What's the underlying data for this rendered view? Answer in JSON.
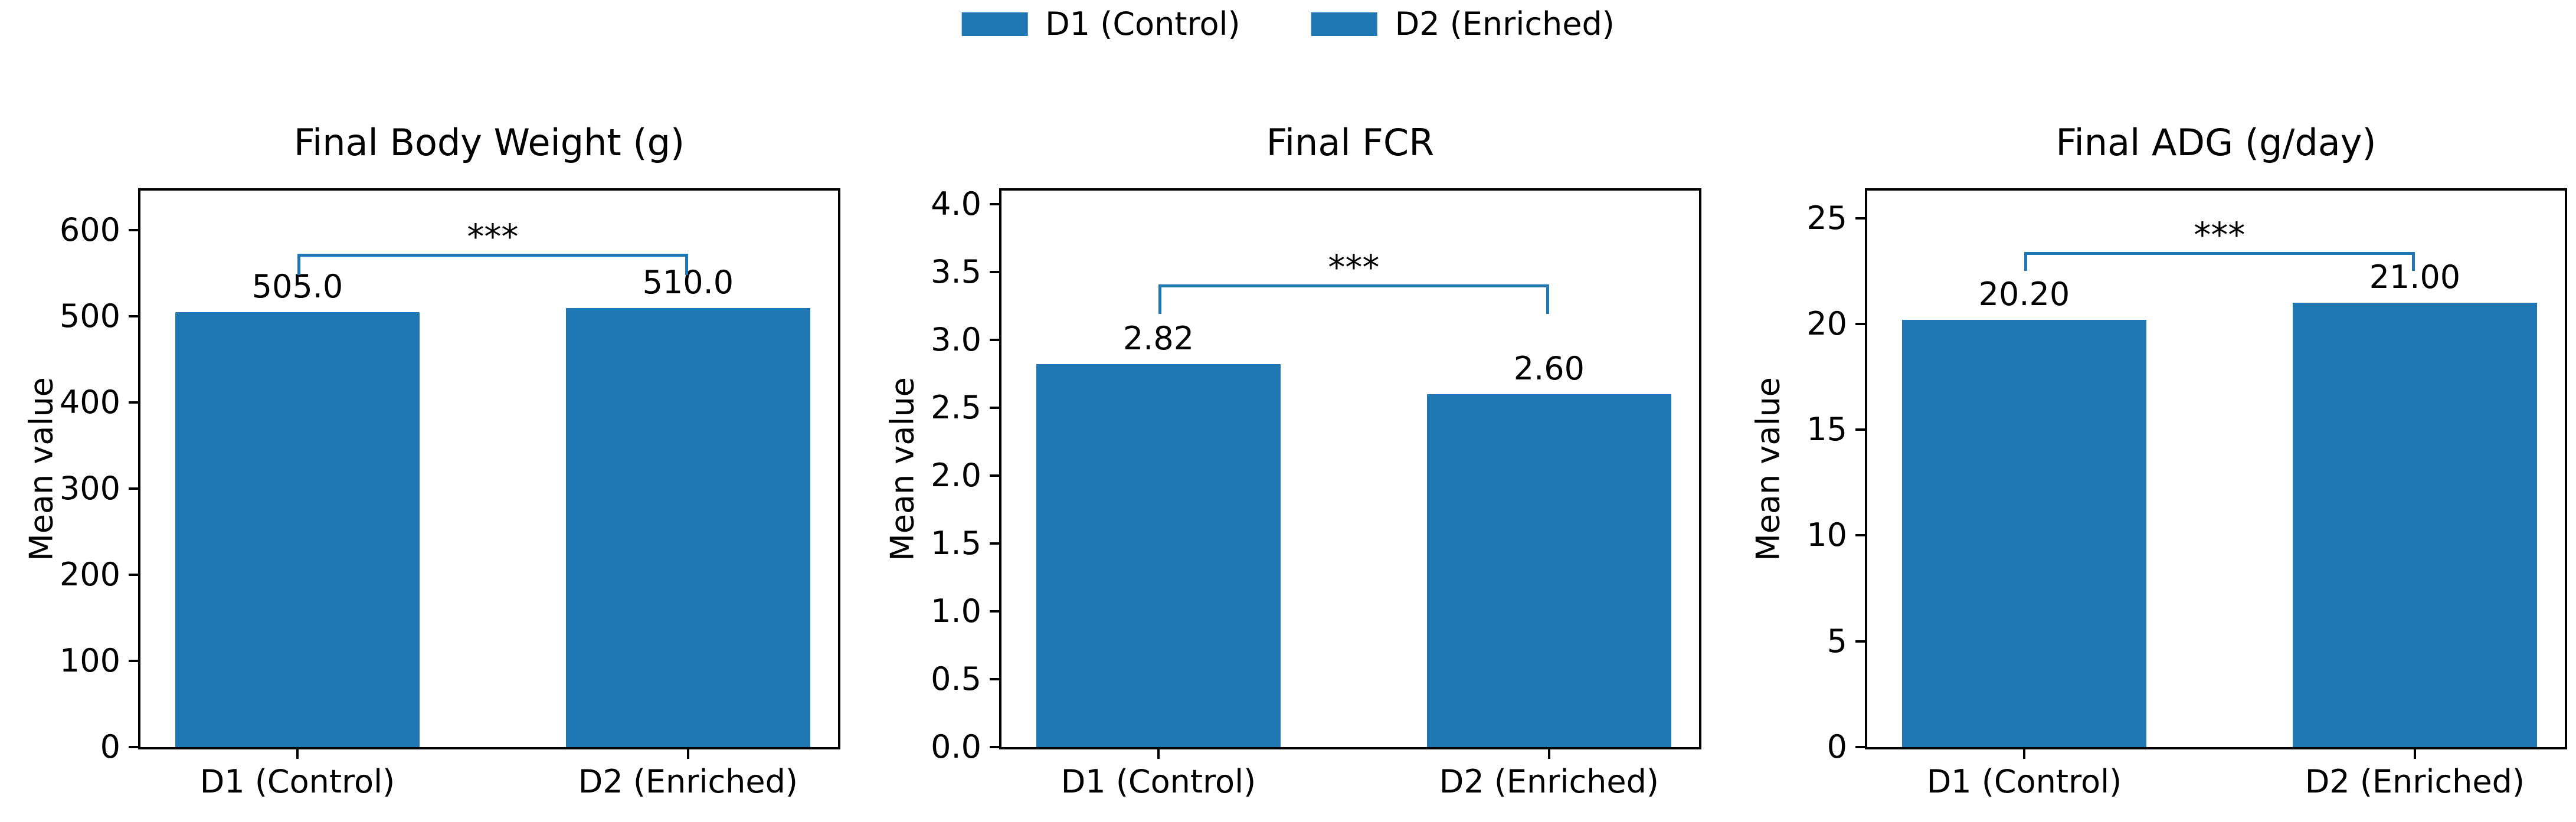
{
  "figure": {
    "background": "#ffffff",
    "accent_color": "#1f77b4",
    "text_color": "#000000"
  },
  "legend": {
    "position": "upper center",
    "items": [
      {
        "label": "D1 (Control)",
        "color": "#1f77b4"
      },
      {
        "label": "D2 (Enriched)",
        "color": "#1f77b4"
      }
    ]
  },
  "chart_data": [
    {
      "type": "bar",
      "title": "Final Body Weight (g)",
      "xlabel": "",
      "ylabel": "Mean value",
      "categories": [
        "D1 (Control)",
        "D2 (Enriched)"
      ],
      "values": [
        505.0,
        510.0
      ],
      "bar_labels": [
        "505.0",
        "510.0"
      ],
      "bar_color": "#1f77b4",
      "yticks": [
        0,
        100,
        200,
        300,
        400,
        500,
        600
      ],
      "ytick_labels": [
        "0",
        "100",
        "200",
        "300",
        "400",
        "500",
        "600"
      ],
      "ylim": [
        0,
        646
      ],
      "grid": false,
      "significance": {
        "label": "***",
        "color": "#1f77b4",
        "line_y": 573,
        "tick_bottom_y": 548
      }
    },
    {
      "type": "bar",
      "title": "Final FCR",
      "xlabel": "",
      "ylabel": "Mean value",
      "categories": [
        "D1 (Control)",
        "D2 (Enriched)"
      ],
      "values": [
        2.82,
        2.6
      ],
      "bar_labels": [
        "2.82",
        "2.60"
      ],
      "bar_color": "#1f77b4",
      "yticks": [
        0.0,
        0.5,
        1.0,
        1.5,
        2.0,
        2.5,
        3.0,
        3.5,
        4.0
      ],
      "ytick_labels": [
        "0.0",
        "0.5",
        "1.0",
        "1.5",
        "2.0",
        "2.5",
        "3.0",
        "3.5",
        "4.0"
      ],
      "ylim": [
        0,
        4.1
      ],
      "grid": false,
      "significance": {
        "label": "***",
        "color": "#1f77b4",
        "line_y": 3.41,
        "tick_bottom_y": 3.19
      }
    },
    {
      "type": "bar",
      "title": "Final ADG (g/day)",
      "xlabel": "",
      "ylabel": "Mean value",
      "categories": [
        "D1 (Control)",
        "D2 (Enriched)"
      ],
      "values": [
        20.2,
        21.0
      ],
      "bar_labels": [
        "20.20",
        "21.00"
      ],
      "bar_color": "#1f77b4",
      "yticks": [
        0,
        5,
        10,
        15,
        20,
        25
      ],
      "ytick_labels": [
        "0",
        "5",
        "10",
        "15",
        "20",
        "25"
      ],
      "ylim": [
        0,
        26.3
      ],
      "grid": false,
      "significance": {
        "label": "***",
        "color": "#1f77b4",
        "line_y": 23.4,
        "tick_bottom_y": 22.5
      }
    }
  ]
}
